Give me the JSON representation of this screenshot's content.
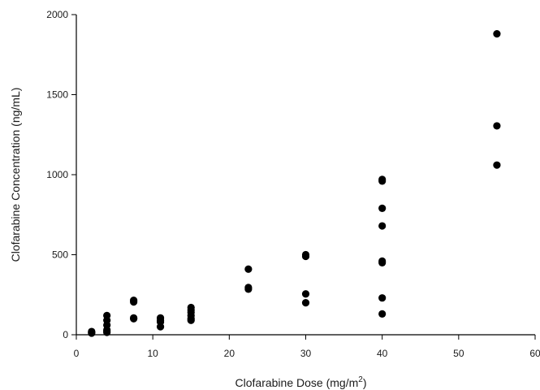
{
  "chart_data": {
    "type": "scatter",
    "title": "",
    "xlabel": "Clofarabine Dose (mg/m²)",
    "xlabel_main": "Clofarabine Dose (mg/m",
    "xlabel_sup": "2",
    "xlabel_end": ")",
    "ylabel": "Clofarabine Concentration (ng/mL)",
    "xlim": [
      0,
      60
    ],
    "ylim": [
      0,
      2000
    ],
    "xticks": [
      0,
      10,
      20,
      30,
      40,
      50,
      60
    ],
    "yticks": [
      0,
      500,
      1000,
      1500,
      2000
    ],
    "grid": false,
    "marker_color": "#000000",
    "series": [
      {
        "x": [
          2,
          2,
          2,
          4,
          4,
          4,
          4,
          4,
          4,
          7.5,
          7.5,
          7.5,
          7.5,
          11,
          11,
          11,
          11,
          15,
          15,
          15,
          15,
          15,
          15,
          22.5,
          22.5,
          22.5,
          30,
          30,
          30,
          30,
          40,
          40,
          40,
          40,
          40,
          40,
          40,
          40,
          55,
          55,
          55
        ],
        "y": [
          10,
          15,
          20,
          15,
          30,
          60,
          90,
          120,
          20,
          100,
          105,
          205,
          215,
          50,
          80,
          105,
          90,
          100,
          120,
          140,
          155,
          170,
          90,
          285,
          410,
          295,
          200,
          255,
          490,
          500,
          130,
          230,
          450,
          460,
          680,
          790,
          960,
          970,
          1060,
          1305,
          1880
        ]
      }
    ]
  }
}
